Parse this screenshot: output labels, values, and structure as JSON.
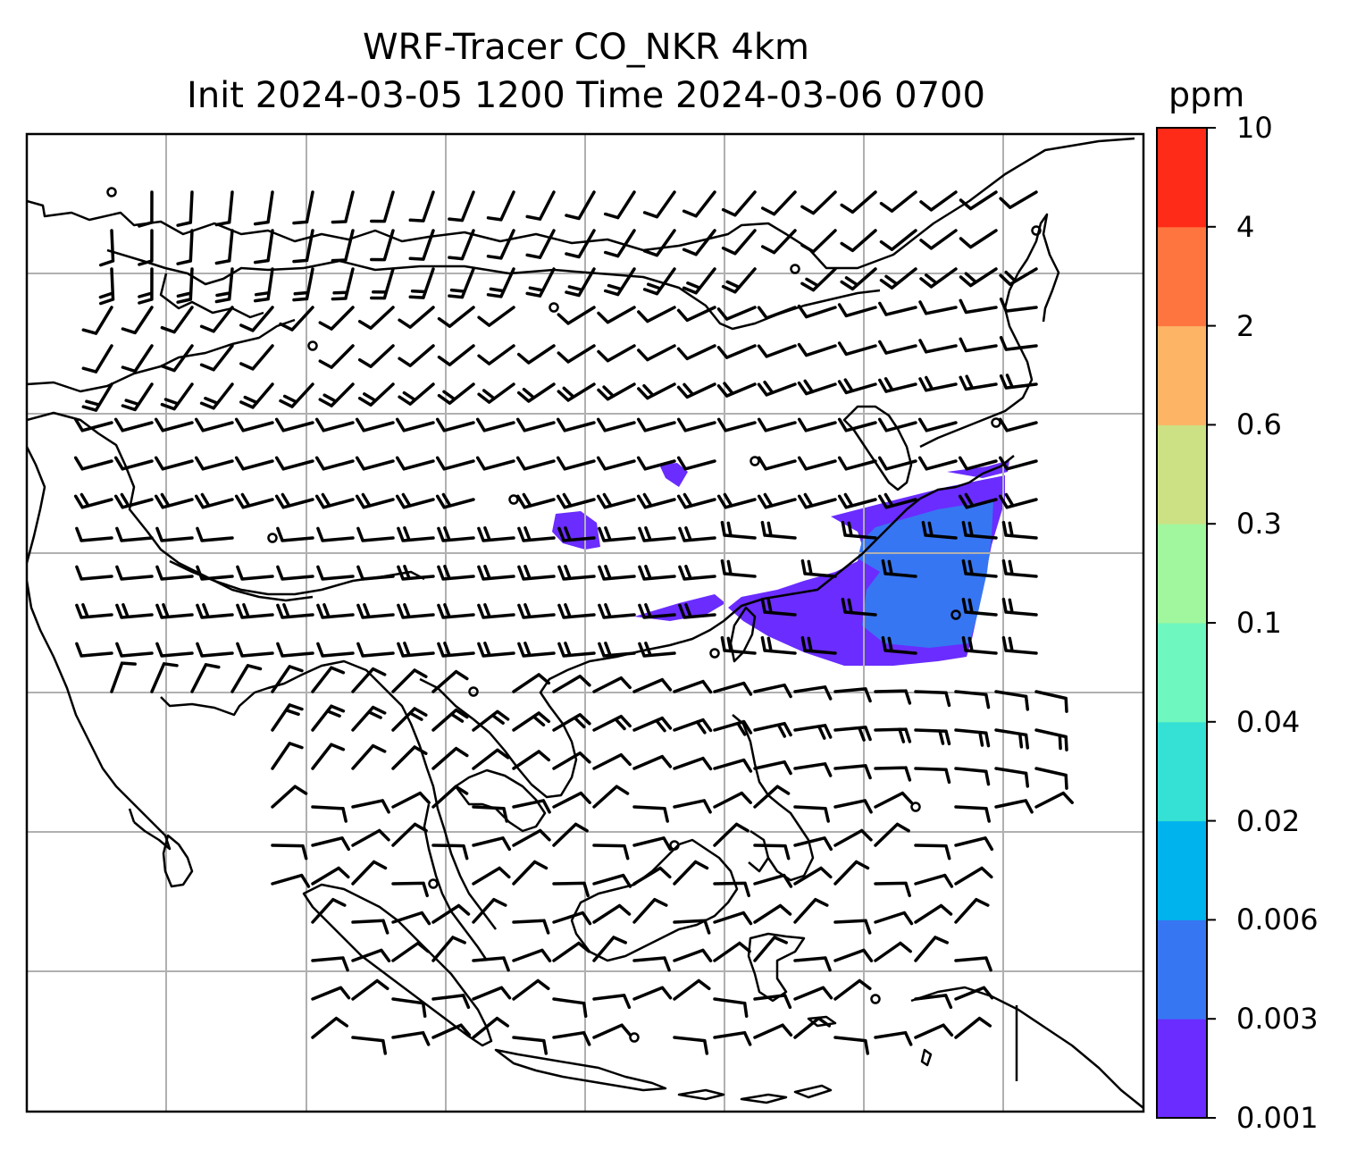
{
  "title": {
    "line1": "WRF-Tracer CO_NKR 4km",
    "line2": "Init 2024-03-05 1200 Time 2024-03-06 0700"
  },
  "colorbar": {
    "unit": "ppm",
    "ticks": [
      "0.001",
      "0.003",
      "0.006",
      "0.02",
      "0.04",
      "0.1",
      "0.3",
      "0.6",
      "2",
      "4",
      "10"
    ],
    "colors": [
      "#6a2cff",
      "#3776f2",
      "#00b3ec",
      "#35e0d4",
      "#6ef7be",
      "#a0f79e",
      "#cbe184",
      "#fdb465",
      "#fe7540",
      "#fd2b17"
    ]
  },
  "plume": {
    "core_color": "#3776f2",
    "edge_color": "#6a2cff"
  },
  "map": {
    "gridlines": true,
    "land_outline_color": "#000000",
    "grid_color": "#b0b0b0"
  }
}
